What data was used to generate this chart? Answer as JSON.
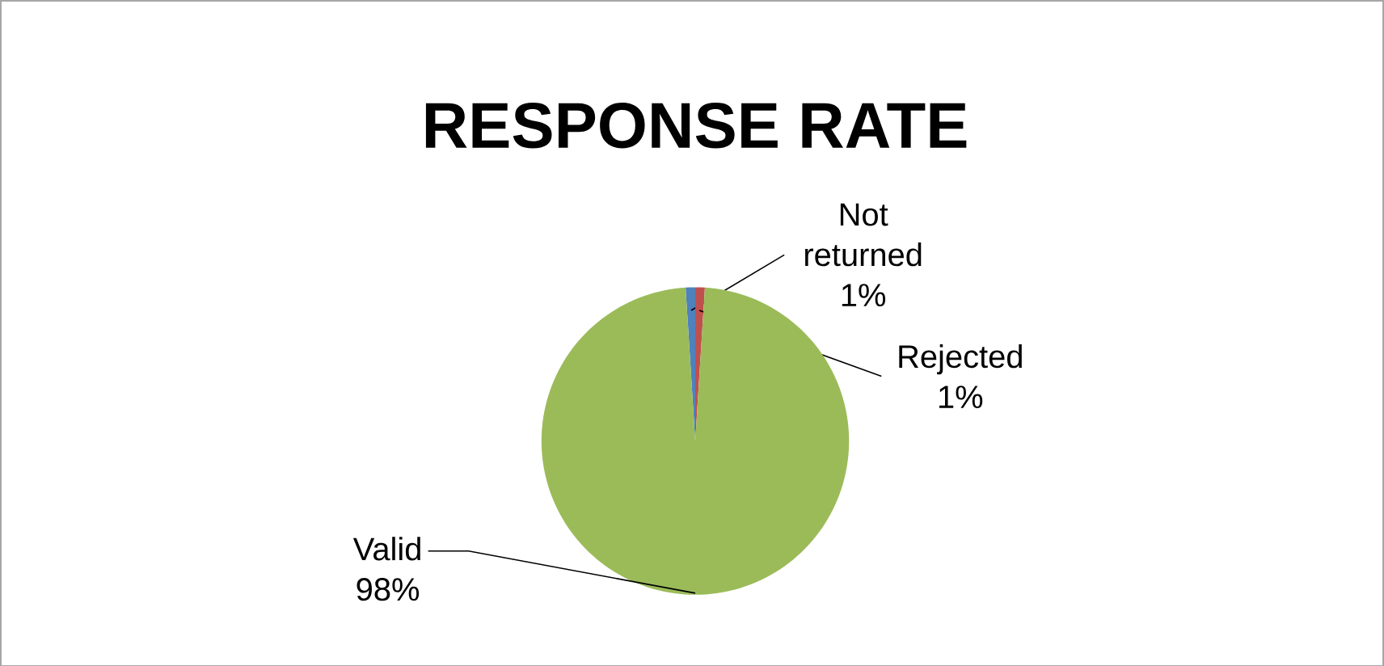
{
  "chart_data": {
    "type": "pie",
    "title": "RESPONSE RATE",
    "categories": [
      "Not returned",
      "Rejected",
      "Valid"
    ],
    "values": [
      1,
      1,
      98
    ],
    "value_labels": [
      "1%",
      "1%",
      "98%"
    ],
    "colors": [
      "#4f81bd",
      "#c0504d",
      "#9bbb59"
    ],
    "legend": false
  }
}
